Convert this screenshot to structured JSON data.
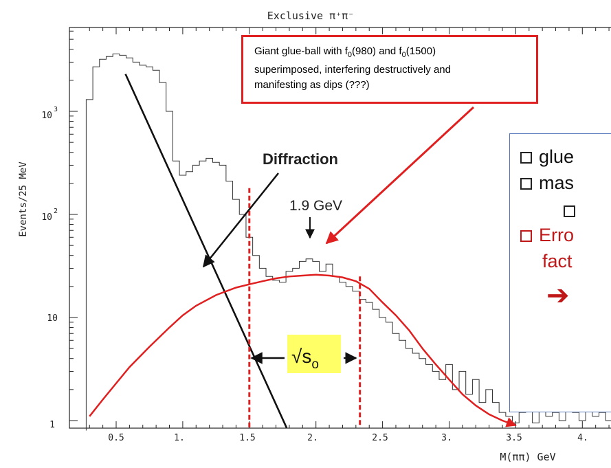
{
  "chart_data": {
    "type": "line",
    "title": "Exclusive π⁺π⁻",
    "xlabel": "M(ππ) GeV",
    "ylabel": "Events/25 MeV",
    "x_scale": "linear",
    "y_scale": "log",
    "xlim": [
      0.25,
      4.3
    ],
    "ylim": [
      0.8,
      5000
    ],
    "x_ticks": [
      {
        "value": 0.5,
        "label": "0.5"
      },
      {
        "value": 1.0,
        "label": "1."
      },
      {
        "value": 1.5,
        "label": "1.5"
      },
      {
        "value": 2.0,
        "label": "2."
      },
      {
        "value": 2.5,
        "label": "2.5"
      },
      {
        "value": 3.0,
        "label": "3."
      },
      {
        "value": 3.5,
        "label": "3.5"
      },
      {
        "value": 4.0,
        "label": "4."
      }
    ],
    "y_ticks": [
      {
        "value": 1,
        "label": "1"
      },
      {
        "value": 10,
        "label": "10"
      },
      {
        "value": 100,
        "label": "10",
        "exp": "2"
      },
      {
        "value": 1000,
        "label": "10",
        "exp": "3"
      }
    ],
    "grid": false,
    "histogram": {
      "x": [
        0.3,
        0.35,
        0.4,
        0.45,
        0.5,
        0.55,
        0.6,
        0.65,
        0.7,
        0.75,
        0.8,
        0.85,
        0.9,
        0.95,
        1.0,
        1.05,
        1.1,
        1.15,
        1.2,
        1.25,
        1.3,
        1.35,
        1.4,
        1.45,
        1.5,
        1.55,
        1.6,
        1.65,
        1.7,
        1.75,
        1.8,
        1.85,
        1.9,
        1.95,
        2.0,
        2.05,
        2.1,
        2.15,
        2.2,
        2.25,
        2.3,
        2.35,
        2.4,
        2.45,
        2.5,
        2.55,
        2.6,
        2.65,
        2.7,
        2.75,
        2.8,
        2.85,
        2.9,
        2.95,
        3.0,
        3.05,
        3.1,
        3.15,
        3.2,
        3.25,
        3.3,
        3.35,
        3.4,
        3.45,
        3.5,
        3.55,
        3.6,
        3.65,
        3.7,
        3.75,
        3.8,
        3.85,
        3.9,
        3.95,
        4.0,
        4.05,
        4.1,
        4.15,
        4.2
      ],
      "values": [
        1300,
        2700,
        3200,
        3400,
        3600,
        3500,
        3300,
        3000,
        2800,
        2700,
        2500,
        1900,
        1000,
        330,
        240,
        260,
        300,
        330,
        350,
        320,
        300,
        210,
        140,
        100,
        60,
        40,
        30,
        25,
        23,
        22,
        28,
        30,
        35,
        37,
        35,
        28,
        33,
        25,
        22,
        20,
        18,
        15,
        14,
        12,
        10,
        9,
        7,
        6,
        5,
        4.5,
        4,
        3.5,
        3,
        2.5,
        3.5,
        2,
        3,
        1.8,
        2.5,
        1.5,
        2,
        1.5,
        1.2,
        1.1,
        0.95,
        1.2,
        1.3,
        0.95,
        1.4,
        1.1,
        1.2,
        1.0,
        1.3,
        1.2,
        1.0,
        1.3,
        1.1,
        1.2,
        1.0
      ]
    },
    "series": [
      {
        "color": "#e02020",
        "x": [
          0.3,
          0.4,
          0.5,
          0.6,
          0.75,
          0.9,
          1.0,
          1.1,
          1.25,
          1.4,
          1.5,
          1.6,
          1.7,
          1.8,
          1.9,
          2.0,
          2.1,
          2.2,
          2.3,
          2.4,
          2.5,
          2.6,
          2.7,
          2.8,
          2.9,
          3.0,
          3.1,
          3.2,
          3.3,
          3.4,
          3.5
        ],
        "y": [
          1.1,
          1.6,
          2.3,
          3.3,
          5.2,
          8,
          10.5,
          13,
          16.5,
          19.5,
          21,
          22.5,
          24,
          25,
          25.5,
          26,
          25.5,
          24.5,
          22.5,
          19,
          14,
          10.5,
          7.5,
          5,
          3.5,
          2.5,
          1.8,
          1.4,
          1.15,
          1.0,
          0.9
        ]
      },
      {
        "color": "#111111",
        "x": [
          0.57,
          1.78
        ],
        "y": [
          2300,
          0.85
        ]
      }
    ],
    "vlines": [
      {
        "x": 1.5,
        "y_top": 180,
        "color": "#e02020",
        "dashed": true
      },
      {
        "x": 2.33,
        "y_top": 25,
        "color": "#e02020",
        "dashed": true
      }
    ],
    "annotations": {
      "diffraction": "Diffraction",
      "peak_label": "1.9 GeV",
      "sqrt_s0_base": "√s",
      "sqrt_s0_sub": "o"
    }
  },
  "callout": {
    "line1_a": "Giant glue-ball with f",
    "line1_sub1": "0",
    "line1_b": "(980) and f",
    "line1_sub2": "0",
    "line1_c": "(1500)",
    "line2": "superimposed, interfering destructively and",
    "line3": "manifesting as dips (???)"
  },
  "panel": {
    "item1": "glue",
    "item2": "mas",
    "item3": "Erro",
    "item3_cont": "fact",
    "arrow": "➔"
  },
  "colors": {
    "red": "#e02020",
    "panel_red": "#c01818",
    "highlight": "#ffff66",
    "panel_border": "#5577bb"
  }
}
